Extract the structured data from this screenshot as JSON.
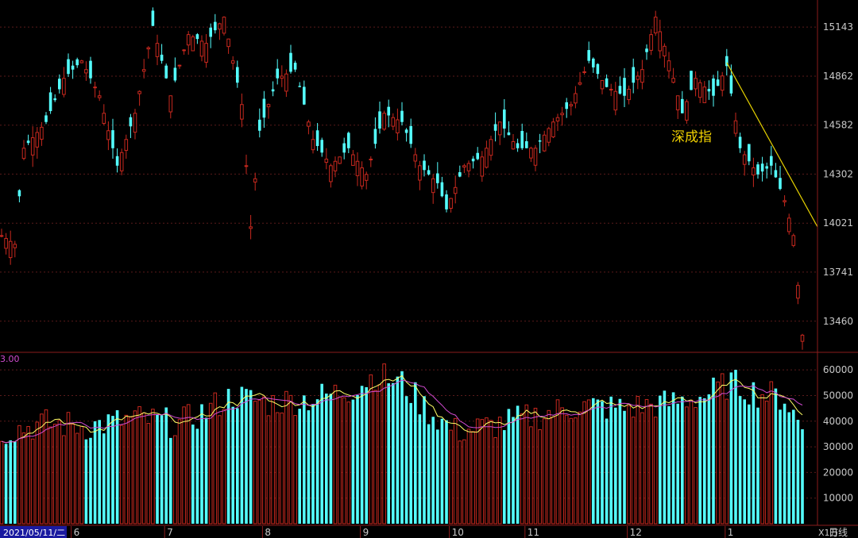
{
  "chart_data": [
    {
      "type": "candlestick",
      "annotation": "深成指",
      "y_ticks": [
        15143,
        14862,
        14582,
        14302,
        14021,
        13741,
        13460
      ],
      "ylim": [
        13300,
        15280
      ],
      "x_month_labels": [
        "6",
        "7",
        "8",
        "9",
        "10",
        "11",
        "12",
        "1"
      ],
      "colors": {
        "up": "#c8281e",
        "down": "#54ffff",
        "trendline": "#e6d200",
        "annotation": "#f0d000"
      },
      "trendline": {
        "from_index": 163,
        "from_value": 14940,
        "to_index": 179,
        "to_value": 14000
      },
      "anchors": [
        {
          "i": 0,
          "c": 13950
        },
        {
          "i": 3,
          "c": 13900
        },
        {
          "i": 5,
          "c": 14450
        },
        {
          "i": 10,
          "c": 14600
        },
        {
          "i": 14,
          "c": 14850
        },
        {
          "i": 18,
          "c": 14950
        },
        {
          "i": 22,
          "c": 14750
        },
        {
          "i": 26,
          "c": 14350
        },
        {
          "i": 30,
          "c": 14650
        },
        {
          "i": 34,
          "c": 15150
        },
        {
          "i": 38,
          "c": 14750
        },
        {
          "i": 42,
          "c": 15100
        },
        {
          "i": 46,
          "c": 15050
        },
        {
          "i": 50,
          "c": 15200
        },
        {
          "i": 54,
          "c": 14700
        },
        {
          "i": 56,
          "c": 14000
        },
        {
          "i": 58,
          "c": 14550
        },
        {
          "i": 62,
          "c": 14850
        },
        {
          "i": 66,
          "c": 14900
        },
        {
          "i": 70,
          "c": 14500
        },
        {
          "i": 74,
          "c": 14350
        },
        {
          "i": 78,
          "c": 14450
        },
        {
          "i": 82,
          "c": 14300
        },
        {
          "i": 86,
          "c": 14650
        },
        {
          "i": 90,
          "c": 14600
        },
        {
          "i": 94,
          "c": 14350
        },
        {
          "i": 98,
          "c": 14250
        },
        {
          "i": 100,
          "c": 14100
        },
        {
          "i": 104,
          "c": 14350
        },
        {
          "i": 108,
          "c": 14400
        },
        {
          "i": 112,
          "c": 14600
        },
        {
          "i": 116,
          "c": 14450
        },
        {
          "i": 120,
          "c": 14450
        },
        {
          "i": 124,
          "c": 14600
        },
        {
          "i": 128,
          "c": 14700
        },
        {
          "i": 132,
          "c": 14950
        },
        {
          "i": 136,
          "c": 14800
        },
        {
          "i": 140,
          "c": 14750
        },
        {
          "i": 144,
          "c": 14900
        },
        {
          "i": 147,
          "c": 15200
        },
        {
          "i": 150,
          "c": 14950
        },
        {
          "i": 153,
          "c": 14650
        },
        {
          "i": 156,
          "c": 14850
        },
        {
          "i": 160,
          "c": 14750
        },
        {
          "i": 163,
          "c": 14920
        },
        {
          "i": 166,
          "c": 14450
        },
        {
          "i": 170,
          "c": 14300
        },
        {
          "i": 173,
          "c": 14350
        },
        {
          "i": 176,
          "c": 14150
        },
        {
          "i": 178,
          "c": 13950
        },
        {
          "i": 180,
          "c": 13380
        }
      ]
    },
    {
      "type": "volume",
      "y_unit": "X1万",
      "y_ticks": [
        60000,
        50000,
        40000,
        30000,
        20000,
        10000
      ],
      "ylim": [
        0,
        65000
      ],
      "ma_legend_value": "3.00",
      "colors": {
        "ma_short": "#ffff66",
        "ma_long": "#d24bd2",
        "ma_legend": "#d24bd2"
      },
      "anchors": [
        {
          "i": 0,
          "v": 36000
        },
        {
          "i": 10,
          "v": 39000
        },
        {
          "i": 20,
          "v": 38000
        },
        {
          "i": 30,
          "v": 41000
        },
        {
          "i": 40,
          "v": 39000
        },
        {
          "i": 46,
          "v": 44000
        },
        {
          "i": 52,
          "v": 50000
        },
        {
          "i": 60,
          "v": 47000
        },
        {
          "i": 70,
          "v": 49000
        },
        {
          "i": 78,
          "v": 52000
        },
        {
          "i": 84,
          "v": 58000
        },
        {
          "i": 90,
          "v": 55000
        },
        {
          "i": 96,
          "v": 44000
        },
        {
          "i": 102,
          "v": 36000
        },
        {
          "i": 110,
          "v": 38000
        },
        {
          "i": 120,
          "v": 42000
        },
        {
          "i": 130,
          "v": 46000
        },
        {
          "i": 140,
          "v": 45000
        },
        {
          "i": 150,
          "v": 47000
        },
        {
          "i": 158,
          "v": 50000
        },
        {
          "i": 164,
          "v": 55000
        },
        {
          "i": 170,
          "v": 51000
        },
        {
          "i": 176,
          "v": 49000
        },
        {
          "i": 180,
          "v": 37000
        }
      ]
    }
  ],
  "footer": {
    "date_label": "2021/05/11/二",
    "period_label": "日线"
  }
}
